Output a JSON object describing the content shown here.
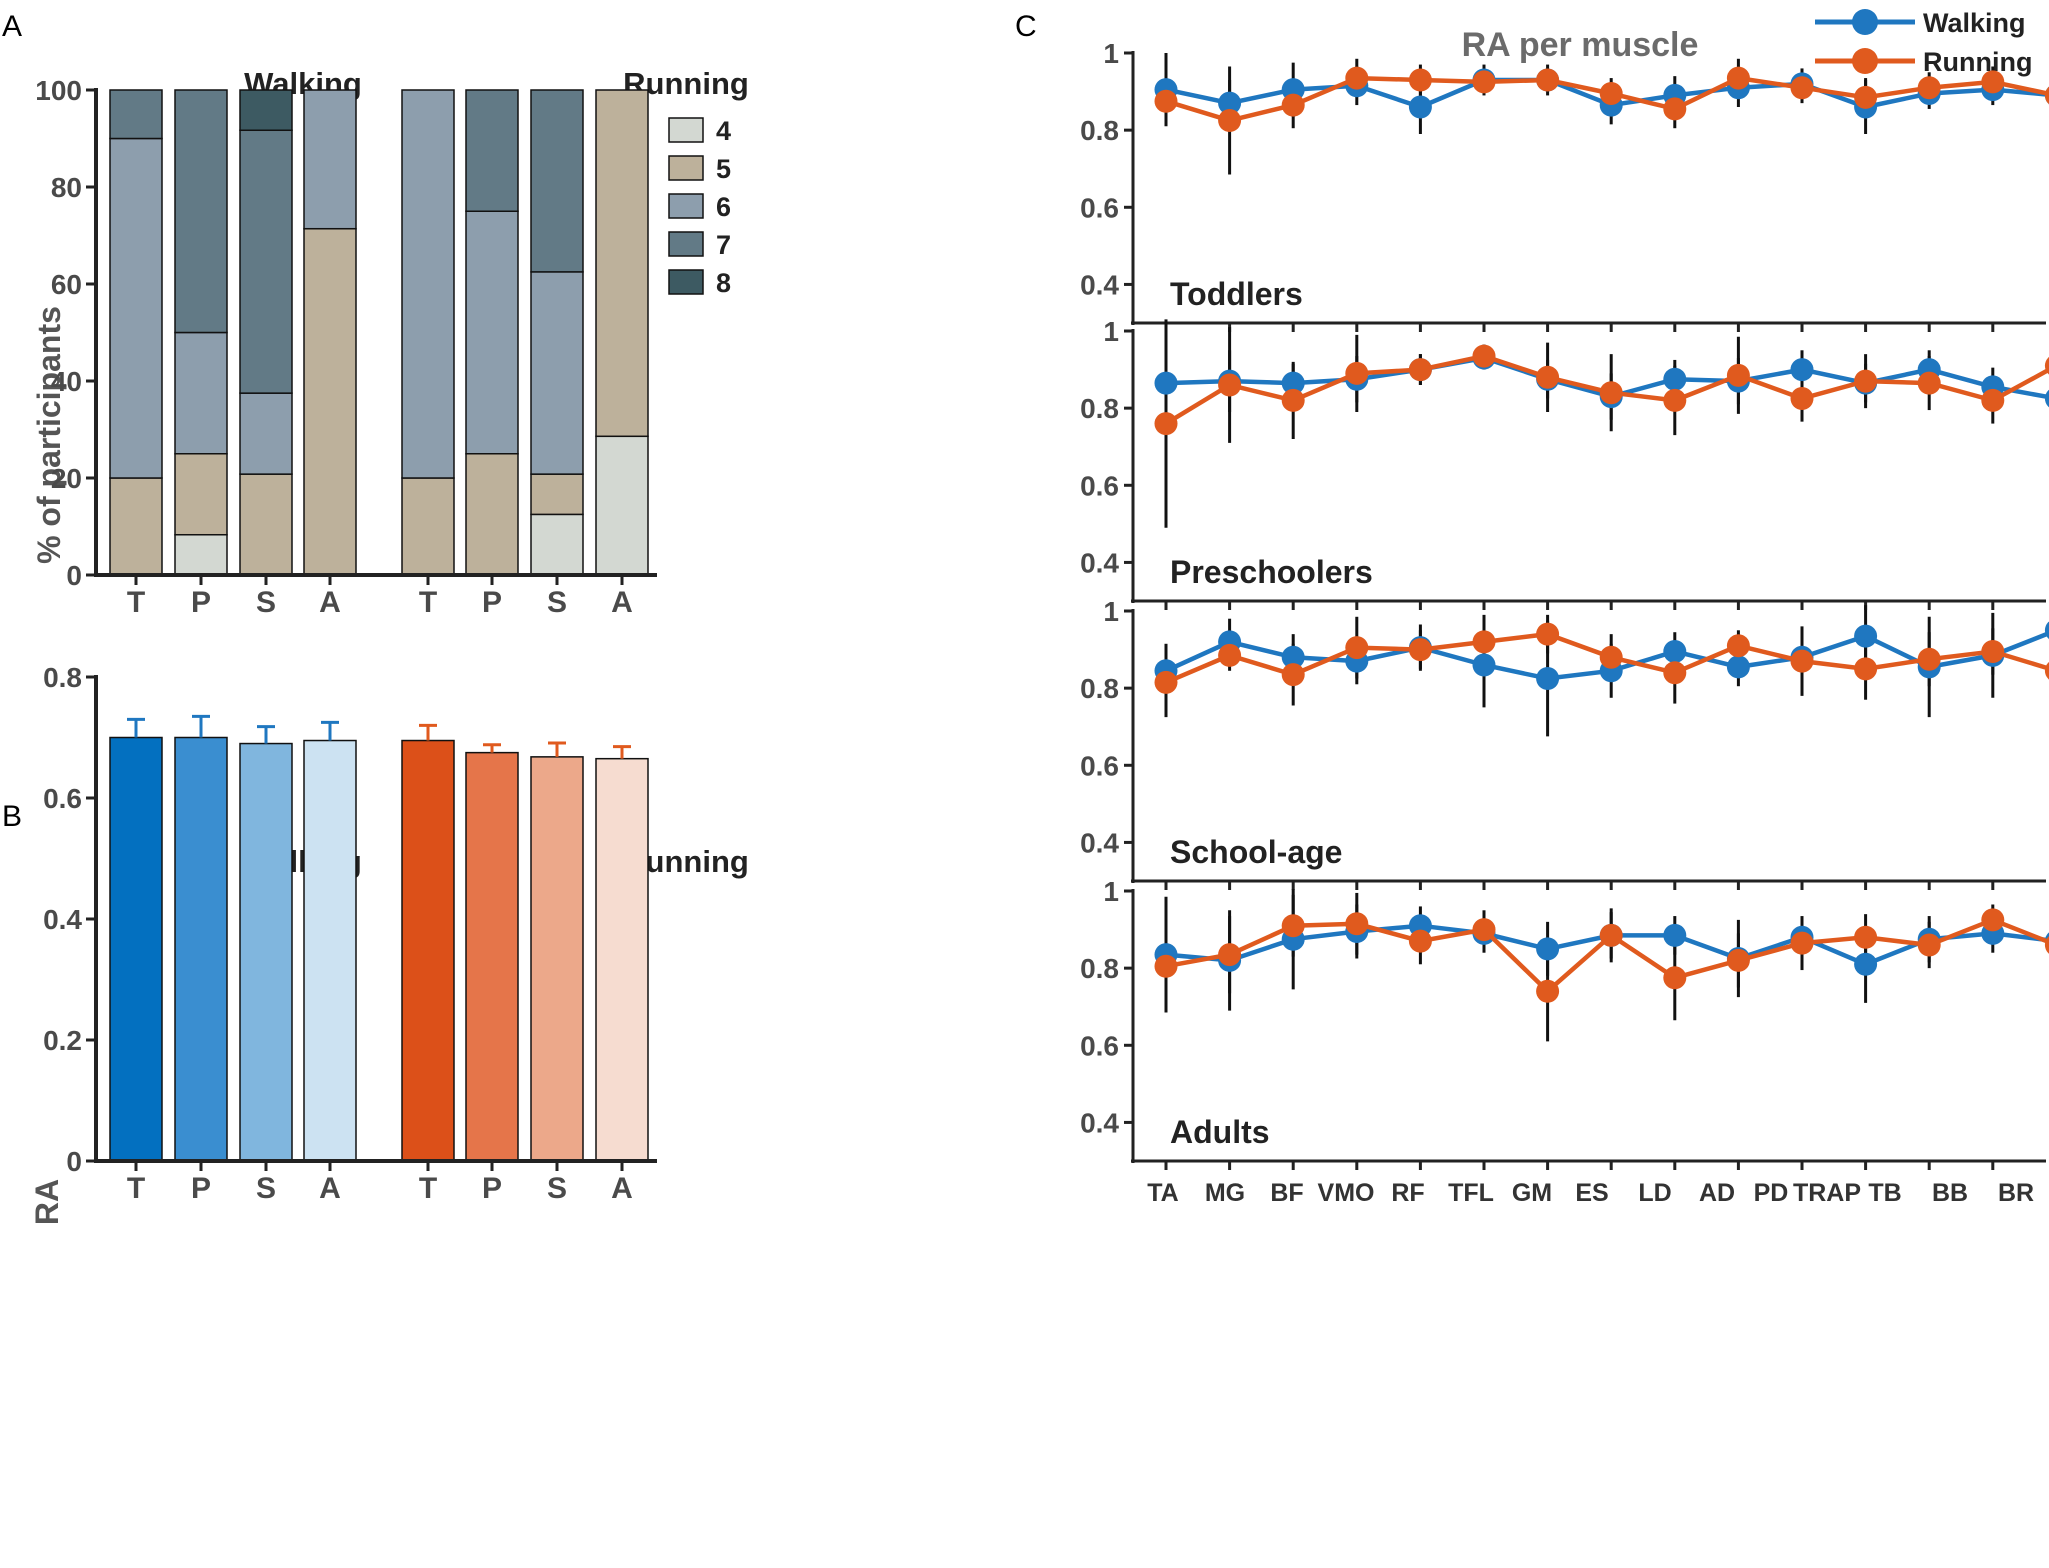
{
  "panel_labels": {
    "a": "A",
    "b": "B",
    "c": "C"
  },
  "colors": {
    "walking_line": "#1f77c0",
    "running_line": "#e05a1e",
    "error_bar": "#111111",
    "axis": "#222222",
    "level_4": "#d3d8d2",
    "level_5": "#bdb19b",
    "level_6": "#8d9ead",
    "level_7": "#627a86",
    "level_8": "#3d5a62",
    "walking_bars": [
      "#0370c0",
      "#3a8ed0",
      "#80b6de",
      "#cce2f2"
    ],
    "running_bars": [
      "#dc5019",
      "#e5754a",
      "#eca88a",
      "#f6dcd0"
    ]
  },
  "chart_data": [
    {
      "id": "A",
      "type": "bar",
      "stacked": true,
      "title": "",
      "xlabel": "",
      "ylabel": "% of participants",
      "ylim": [
        0,
        100
      ],
      "yticks": [
        0,
        20,
        40,
        60,
        80,
        100
      ],
      "groups": [
        "Walking",
        "Running"
      ],
      "categories": [
        "T",
        "P",
        "S",
        "A"
      ],
      "legend": {
        "title": "",
        "entries": [
          "4",
          "5",
          "6",
          "7",
          "8"
        ],
        "placement": "right"
      },
      "bars": [
        {
          "group": "Walking",
          "category": "T",
          "segments": {
            "4": 0,
            "5": 20,
            "6": 70,
            "7": 10,
            "8": 0
          }
        },
        {
          "group": "Walking",
          "category": "P",
          "segments": {
            "4": 8.3,
            "5": 16.7,
            "6": 25,
            "7": 50,
            "8": 0
          }
        },
        {
          "group": "Walking",
          "category": "S",
          "segments": {
            "4": 0,
            "5": 20.8,
            "6": 16.7,
            "7": 54.2,
            "8": 8.3
          }
        },
        {
          "group": "Walking",
          "category": "A",
          "segments": {
            "4": 0,
            "5": 71.4,
            "6": 28.6,
            "7": 0,
            "8": 0
          }
        },
        {
          "group": "Running",
          "category": "T",
          "segments": {
            "4": 0,
            "5": 20,
            "6": 80,
            "7": 0,
            "8": 0
          }
        },
        {
          "group": "Running",
          "category": "P",
          "segments": {
            "4": 0,
            "5": 25,
            "6": 50,
            "7": 25,
            "8": 0
          }
        },
        {
          "group": "Running",
          "category": "S",
          "segments": {
            "4": 12.5,
            "5": 8.3,
            "6": 41.7,
            "7": 37.5,
            "8": 0
          }
        },
        {
          "group": "Running",
          "category": "A",
          "segments": {
            "4": 28.6,
            "5": 71.4,
            "6": 0,
            "7": 0,
            "8": 0
          }
        }
      ]
    },
    {
      "id": "B",
      "type": "bar",
      "title": "",
      "xlabel": "",
      "ylabel": "RA",
      "ylim": [
        0,
        0.8
      ],
      "yticks": [
        "0",
        "0.2",
        "0.4",
        "0.6",
        "0.8"
      ],
      "groups": [
        "Walking",
        "Running"
      ],
      "categories": [
        "T",
        "P",
        "S",
        "A"
      ],
      "series": [
        {
          "name": "Walking",
          "values": [
            0.7,
            0.7,
            0.69,
            0.695
          ],
          "errors": [
            0.03,
            0.035,
            0.028,
            0.03
          ]
        },
        {
          "name": "Running",
          "values": [
            0.695,
            0.675,
            0.668,
            0.665
          ],
          "errors": [
            0.025,
            0.013,
            0.023,
            0.02
          ]
        }
      ]
    },
    {
      "id": "C",
      "type": "line",
      "title": "RA per muscle",
      "xlabel": "",
      "ylabel": "",
      "ylim": [
        0.3,
        1
      ],
      "yticks": [
        "0.4",
        "0.6",
        "0.8",
        "1"
      ],
      "categories": [
        "TA",
        "MG",
        "BF",
        "VMO",
        "RF",
        "TFL",
        "GM",
        "ES",
        "LD",
        "AD",
        "PD",
        "TRAP",
        "TB",
        "BB",
        "BR"
      ],
      "legend": {
        "entries": [
          "Walking",
          "Running"
        ],
        "placement": "top-right"
      },
      "panels": [
        {
          "name": "Toddlers",
          "walking": [
            0.905,
            0.87,
            0.905,
            0.915,
            0.86,
            0.93,
            0.93,
            0.865,
            0.89,
            0.91,
            0.92,
            0.86,
            0.895,
            0.905,
            0.89
          ],
          "walking_err": [
            0.095,
            0.06,
            0.07,
            0.05,
            0.07,
            0.04,
            0.03,
            0.05,
            0.05,
            0.05,
            0.04,
            0.07,
            0.04,
            0.04,
            0.05
          ],
          "running": [
            0.875,
            0.825,
            0.865,
            0.935,
            0.93,
            0.925,
            0.93,
            0.895,
            0.855,
            0.935,
            0.91,
            0.885,
            0.91,
            0.925,
            0.89
          ],
          "running_err": [
            0.06,
            0.14,
            0.06,
            0.05,
            0.04,
            0.03,
            0.04,
            0.04,
            0.05,
            0.05,
            0.04,
            0.05,
            0.04,
            0.04,
            0.06
          ]
        },
        {
          "name": "Preschoolers",
          "walking": [
            0.865,
            0.87,
            0.865,
            0.875,
            0.9,
            0.93,
            0.875,
            0.83,
            0.875,
            0.87,
            0.9,
            0.865,
            0.9,
            0.855,
            0.825
          ],
          "walking_err": [
            0.06,
            0.08,
            0.05,
            0.06,
            0.04,
            0.03,
            0.05,
            0.06,
            0.05,
            0.06,
            0.05,
            0.05,
            0.05,
            0.05,
            0.06
          ],
          "running": [
            0.76,
            0.86,
            0.82,
            0.89,
            0.9,
            0.935,
            0.88,
            0.84,
            0.82,
            0.885,
            0.825,
            0.87,
            0.865,
            0.82,
            0.91
          ],
          "running_err": [
            0.27,
            0.15,
            0.1,
            0.1,
            0.04,
            0.03,
            0.09,
            0.1,
            0.09,
            0.1,
            0.06,
            0.07,
            0.07,
            0.06,
            0.07
          ]
        },
        {
          "name": "School-age",
          "walking": [
            0.845,
            0.92,
            0.88,
            0.87,
            0.905,
            0.86,
            0.825,
            0.845,
            0.895,
            0.855,
            0.88,
            0.935,
            0.855,
            0.885,
            0.95
          ],
          "walking_err": [
            0.07,
            0.06,
            0.06,
            0.06,
            0.06,
            0.11,
            0.15,
            0.07,
            0.05,
            0.05,
            0.07,
            0.08,
            0.13,
            0.11,
            0.06
          ],
          "running": [
            0.815,
            0.885,
            0.835,
            0.905,
            0.9,
            0.92,
            0.94,
            0.88,
            0.84,
            0.91,
            0.87,
            0.85,
            0.875,
            0.895,
            0.845
          ],
          "running_err": [
            0.09,
            0.04,
            0.08,
            0.08,
            0.05,
            0.07,
            0.05,
            0.06,
            0.08,
            0.04,
            0.09,
            0.08,
            0.07,
            0.06,
            0.08
          ]
        },
        {
          "name": "Adults",
          "walking": [
            0.835,
            0.82,
            0.875,
            0.895,
            0.91,
            0.89,
            0.85,
            0.885,
            0.885,
            0.825,
            0.88,
            0.81,
            0.875,
            0.89,
            0.87
          ],
          "walking_err": [
            0.15,
            0.13,
            0.13,
            0.07,
            0.05,
            0.05,
            0.07,
            0.07,
            0.05,
            0.1,
            0.04,
            0.1,
            0.06,
            0.05,
            0.08
          ],
          "running": [
            0.805,
            0.835,
            0.91,
            0.915,
            0.87,
            0.9,
            0.74,
            0.885,
            0.775,
            0.82,
            0.865,
            0.88,
            0.86,
            0.925,
            0.86
          ],
          "running_err": [
            0.12,
            0.1,
            0.08,
            0.08,
            0.06,
            0.05,
            0.13,
            0.06,
            0.11,
            0.07,
            0.07,
            0.06,
            0.06,
            0.04,
            0.06
          ]
        }
      ]
    }
  ]
}
